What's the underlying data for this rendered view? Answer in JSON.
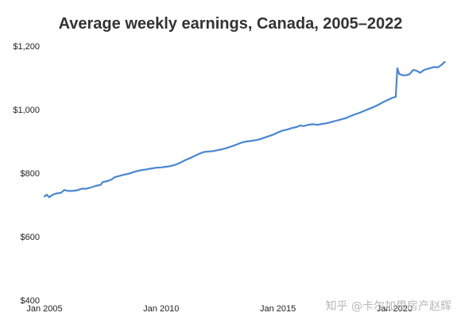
{
  "chart_data": {
    "type": "line",
    "title": "Average weekly earnings, Canada, 2005–2022",
    "xlabel": "",
    "ylabel": "",
    "x_ticks": [
      {
        "label": "Jan 2005",
        "value": 2005.0
      },
      {
        "label": "Jan 2010",
        "value": 2010.0
      },
      {
        "label": "Jan 2015",
        "value": 2015.0
      },
      {
        "label": "Jan 2020",
        "value": 2020.0
      }
    ],
    "y_ticks": [
      {
        "label": "$400",
        "value": 400
      },
      {
        "label": "$600",
        "value": 600
      },
      {
        "label": "$800",
        "value": 800
      },
      {
        "label": "$1,000",
        "value": 1000
      },
      {
        "label": "$1,200",
        "value": 1200
      }
    ],
    "xlim": [
      2005.0,
      2022.2
    ],
    "ylim": [
      400,
      1200
    ],
    "grid": false,
    "legend": "none",
    "series_color": "#4a86d0",
    "series": [
      {
        "points": [
          [
            2005.0,
            727
          ],
          [
            2005.1,
            732
          ],
          [
            2005.2,
            724
          ],
          [
            2005.35,
            732
          ],
          [
            2005.5,
            736
          ],
          [
            2005.7,
            738
          ],
          [
            2005.85,
            747
          ],
          [
            2006.0,
            744
          ],
          [
            2006.2,
            744
          ],
          [
            2006.4,
            746
          ],
          [
            2006.6,
            751
          ],
          [
            2006.8,
            751
          ],
          [
            2007.0,
            755
          ],
          [
            2007.2,
            760
          ],
          [
            2007.4,
            763
          ],
          [
            2007.5,
            772
          ],
          [
            2007.7,
            775
          ],
          [
            2007.9,
            781
          ],
          [
            2008.0,
            787
          ],
          [
            2008.2,
            791
          ],
          [
            2008.4,
            795
          ],
          [
            2008.6,
            798
          ],
          [
            2008.8,
            803
          ],
          [
            2009.0,
            807
          ],
          [
            2009.2,
            810
          ],
          [
            2009.4,
            812
          ],
          [
            2009.6,
            815
          ],
          [
            2009.8,
            817
          ],
          [
            2010.0,
            818
          ],
          [
            2010.2,
            820
          ],
          [
            2010.4,
            822
          ],
          [
            2010.6,
            826
          ],
          [
            2010.8,
            832
          ],
          [
            2011.0,
            840
          ],
          [
            2011.2,
            846
          ],
          [
            2011.4,
            853
          ],
          [
            2011.6,
            860
          ],
          [
            2011.8,
            866
          ],
          [
            2012.0,
            868
          ],
          [
            2012.2,
            869
          ],
          [
            2012.4,
            872
          ],
          [
            2012.6,
            875
          ],
          [
            2012.8,
            879
          ],
          [
            2013.0,
            884
          ],
          [
            2013.2,
            889
          ],
          [
            2013.4,
            895
          ],
          [
            2013.6,
            899
          ],
          [
            2013.8,
            901
          ],
          [
            2014.0,
            903
          ],
          [
            2014.2,
            906
          ],
          [
            2014.4,
            911
          ],
          [
            2014.6,
            916
          ],
          [
            2014.8,
            921
          ],
          [
            2015.0,
            928
          ],
          [
            2015.2,
            934
          ],
          [
            2015.4,
            937
          ],
          [
            2015.6,
            942
          ],
          [
            2015.8,
            945
          ],
          [
            2015.95,
            950
          ],
          [
            2016.1,
            948
          ],
          [
            2016.3,
            952
          ],
          [
            2016.5,
            954
          ],
          [
            2016.7,
            952
          ],
          [
            2016.9,
            955
          ],
          [
            2017.1,
            957
          ],
          [
            2017.3,
            961
          ],
          [
            2017.5,
            965
          ],
          [
            2017.7,
            969
          ],
          [
            2017.9,
            973
          ],
          [
            2018.1,
            979
          ],
          [
            2018.3,
            985
          ],
          [
            2018.5,
            990
          ],
          [
            2018.7,
            996
          ],
          [
            2018.9,
            1002
          ],
          [
            2019.1,
            1008
          ],
          [
            2019.3,
            1015
          ],
          [
            2019.5,
            1023
          ],
          [
            2019.7,
            1030
          ],
          [
            2019.9,
            1037
          ],
          [
            2020.05,
            1040
          ],
          [
            2020.12,
            1130
          ],
          [
            2020.2,
            1112
          ],
          [
            2020.35,
            1108
          ],
          [
            2020.5,
            1108
          ],
          [
            2020.65,
            1112
          ],
          [
            2020.8,
            1125
          ],
          [
            2020.95,
            1122
          ],
          [
            2021.1,
            1116
          ],
          [
            2021.25,
            1124
          ],
          [
            2021.4,
            1128
          ],
          [
            2021.55,
            1131
          ],
          [
            2021.7,
            1134
          ],
          [
            2021.85,
            1133
          ],
          [
            2022.0,
            1140
          ],
          [
            2022.15,
            1150
          ]
        ]
      }
    ]
  },
  "watermark": "知乎 @卡尔加里房产赵辉"
}
